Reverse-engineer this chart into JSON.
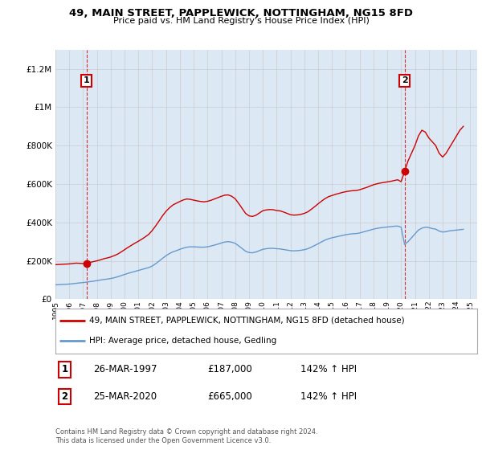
{
  "title_line1": "49, MAIN STREET, PAPPLEWICK, NOTTINGHAM, NG15 8FD",
  "title_line2": "Price paid vs. HM Land Registry's House Price Index (HPI)",
  "ylim": [
    0,
    1300000
  ],
  "yticks": [
    0,
    200000,
    400000,
    600000,
    800000,
    1000000,
    1200000
  ],
  "grid_color": "#cccccc",
  "plot_bg_color": "#dce9f5",
  "red_color": "#cc0000",
  "blue_color": "#6699cc",
  "purchase1_year": 1997.25,
  "purchase1_value": 187000,
  "purchase2_year": 2020.25,
  "purchase2_value": 665000,
  "legend_label_red": "49, MAIN STREET, PAPPLEWICK, NOTTINGHAM, NG15 8FD (detached house)",
  "legend_label_blue": "HPI: Average price, detached house, Gedling",
  "table_entries": [
    {
      "num": "1",
      "date": "26-MAR-1997",
      "price": "£187,000",
      "hpi": "142% ↑ HPI"
    },
    {
      "num": "2",
      "date": "25-MAR-2020",
      "price": "£665,000",
      "hpi": "142% ↑ HPI"
    }
  ],
  "footer": "Contains HM Land Registry data © Crown copyright and database right 2024.\nThis data is licensed under the Open Government Licence v3.0.",
  "hpi_data_x": [
    1995.0,
    1995.25,
    1995.5,
    1995.75,
    1996.0,
    1996.25,
    1996.5,
    1996.75,
    1997.0,
    1997.25,
    1997.5,
    1997.75,
    1998.0,
    1998.25,
    1998.5,
    1998.75,
    1999.0,
    1999.25,
    1999.5,
    1999.75,
    2000.0,
    2000.25,
    2000.5,
    2000.75,
    2001.0,
    2001.25,
    2001.5,
    2001.75,
    2002.0,
    2002.25,
    2002.5,
    2002.75,
    2003.0,
    2003.25,
    2003.5,
    2003.75,
    2004.0,
    2004.25,
    2004.5,
    2004.75,
    2005.0,
    2005.25,
    2005.5,
    2005.75,
    2006.0,
    2006.25,
    2006.5,
    2006.75,
    2007.0,
    2007.25,
    2007.5,
    2007.75,
    2008.0,
    2008.25,
    2008.5,
    2008.75,
    2009.0,
    2009.25,
    2009.5,
    2009.75,
    2010.0,
    2010.25,
    2010.5,
    2010.75,
    2011.0,
    2011.25,
    2011.5,
    2011.75,
    2012.0,
    2012.25,
    2012.5,
    2012.75,
    2013.0,
    2013.25,
    2013.5,
    2013.75,
    2014.0,
    2014.25,
    2014.5,
    2014.75,
    2015.0,
    2015.25,
    2015.5,
    2015.75,
    2016.0,
    2016.25,
    2016.5,
    2016.75,
    2017.0,
    2017.25,
    2017.5,
    2017.75,
    2018.0,
    2018.25,
    2018.5,
    2018.75,
    2019.0,
    2019.25,
    2019.5,
    2019.75,
    2020.0,
    2020.25,
    2020.5,
    2020.75,
    2021.0,
    2021.25,
    2021.5,
    2021.75,
    2022.0,
    2022.25,
    2022.5,
    2022.75,
    2023.0,
    2023.25,
    2023.5,
    2023.75,
    2024.0,
    2024.25,
    2024.5
  ],
  "hpi_data_y": [
    75000,
    76000,
    77000,
    78000,
    79000,
    81000,
    83000,
    85000,
    87000,
    89000,
    92000,
    94000,
    97000,
    100000,
    103000,
    105000,
    108000,
    112000,
    117000,
    123000,
    129000,
    135000,
    140000,
    145000,
    150000,
    155000,
    160000,
    165000,
    173000,
    185000,
    199000,
    213000,
    227000,
    238000,
    247000,
    253000,
    260000,
    266000,
    271000,
    273000,
    273000,
    272000,
    271000,
    271000,
    273000,
    277000,
    282000,
    287000,
    293000,
    298000,
    300000,
    297000,
    291000,
    278000,
    264000,
    250000,
    243000,
    242000,
    246000,
    253000,
    260000,
    263000,
    265000,
    265000,
    263000,
    262000,
    259000,
    256000,
    253000,
    252000,
    253000,
    255000,
    258000,
    263000,
    271000,
    280000,
    289000,
    299000,
    308000,
    315000,
    320000,
    324000,
    328000,
    332000,
    336000,
    339000,
    341000,
    342000,
    345000,
    350000,
    355000,
    360000,
    365000,
    369000,
    372000,
    374000,
    376000,
    378000,
    380000,
    381000,
    375000,
    285000,
    300000,
    320000,
    340000,
    360000,
    370000,
    375000,
    373000,
    368000,
    365000,
    355000,
    350000,
    352000,
    356000,
    358000,
    360000,
    362000,
    364000
  ],
  "red_data_x": [
    1995.0,
    1995.25,
    1995.5,
    1995.75,
    1996.0,
    1996.25,
    1996.5,
    1996.75,
    1997.0,
    1997.25,
    1997.5,
    1997.75,
    1998.0,
    1998.25,
    1998.5,
    1998.75,
    1999.0,
    1999.25,
    1999.5,
    1999.75,
    2000.0,
    2000.25,
    2000.5,
    2000.75,
    2001.0,
    2001.25,
    2001.5,
    2001.75,
    2002.0,
    2002.25,
    2002.5,
    2002.75,
    2003.0,
    2003.25,
    2003.5,
    2003.75,
    2004.0,
    2004.25,
    2004.5,
    2004.75,
    2005.0,
    2005.25,
    2005.5,
    2005.75,
    2006.0,
    2006.25,
    2006.5,
    2006.75,
    2007.0,
    2007.25,
    2007.5,
    2007.75,
    2008.0,
    2008.25,
    2008.5,
    2008.75,
    2009.0,
    2009.25,
    2009.5,
    2009.75,
    2010.0,
    2010.25,
    2010.5,
    2010.75,
    2011.0,
    2011.25,
    2011.5,
    2011.75,
    2012.0,
    2012.25,
    2012.5,
    2012.75,
    2013.0,
    2013.25,
    2013.5,
    2013.75,
    2014.0,
    2014.25,
    2014.5,
    2014.75,
    2015.0,
    2015.25,
    2015.5,
    2015.75,
    2016.0,
    2016.25,
    2016.5,
    2016.75,
    2017.0,
    2017.25,
    2017.5,
    2017.75,
    2018.0,
    2018.25,
    2018.5,
    2018.75,
    2019.0,
    2019.25,
    2019.5,
    2019.75,
    2020.0,
    2020.25,
    2020.5,
    2020.75,
    2021.0,
    2021.25,
    2021.5,
    2021.75,
    2022.0,
    2022.25,
    2022.5,
    2022.75,
    2023.0,
    2023.25,
    2023.5,
    2023.75,
    2024.0,
    2024.25,
    2024.5
  ],
  "red_data_y": [
    180000,
    181000,
    182000,
    183000,
    184000,
    186000,
    188000,
    187000,
    186000,
    187000,
    192000,
    196000,
    200000,
    205000,
    211000,
    215000,
    220000,
    227000,
    235000,
    246000,
    258000,
    270000,
    281000,
    292000,
    302000,
    313000,
    325000,
    338000,
    358000,
    382000,
    408000,
    435000,
    458000,
    476000,
    491000,
    500000,
    509000,
    517000,
    522000,
    520000,
    516000,
    512000,
    509000,
    507000,
    510000,
    515000,
    522000,
    529000,
    536000,
    542000,
    543000,
    536000,
    523000,
    499000,
    473000,
    447000,
    434000,
    431000,
    437000,
    449000,
    461000,
    465000,
    467000,
    466000,
    462000,
    460000,
    454000,
    447000,
    440000,
    438000,
    439000,
    442000,
    447000,
    455000,
    468000,
    482000,
    497000,
    511000,
    524000,
    534000,
    540000,
    546000,
    551000,
    556000,
    560000,
    563000,
    565000,
    566000,
    570000,
    576000,
    582000,
    589000,
    596000,
    601000,
    605000,
    608000,
    611000,
    614000,
    618000,
    622000,
    612000,
    665000,
    720000,
    760000,
    800000,
    850000,
    880000,
    870000,
    840000,
    820000,
    800000,
    760000,
    740000,
    760000,
    790000,
    820000,
    850000,
    880000,
    900000
  ]
}
